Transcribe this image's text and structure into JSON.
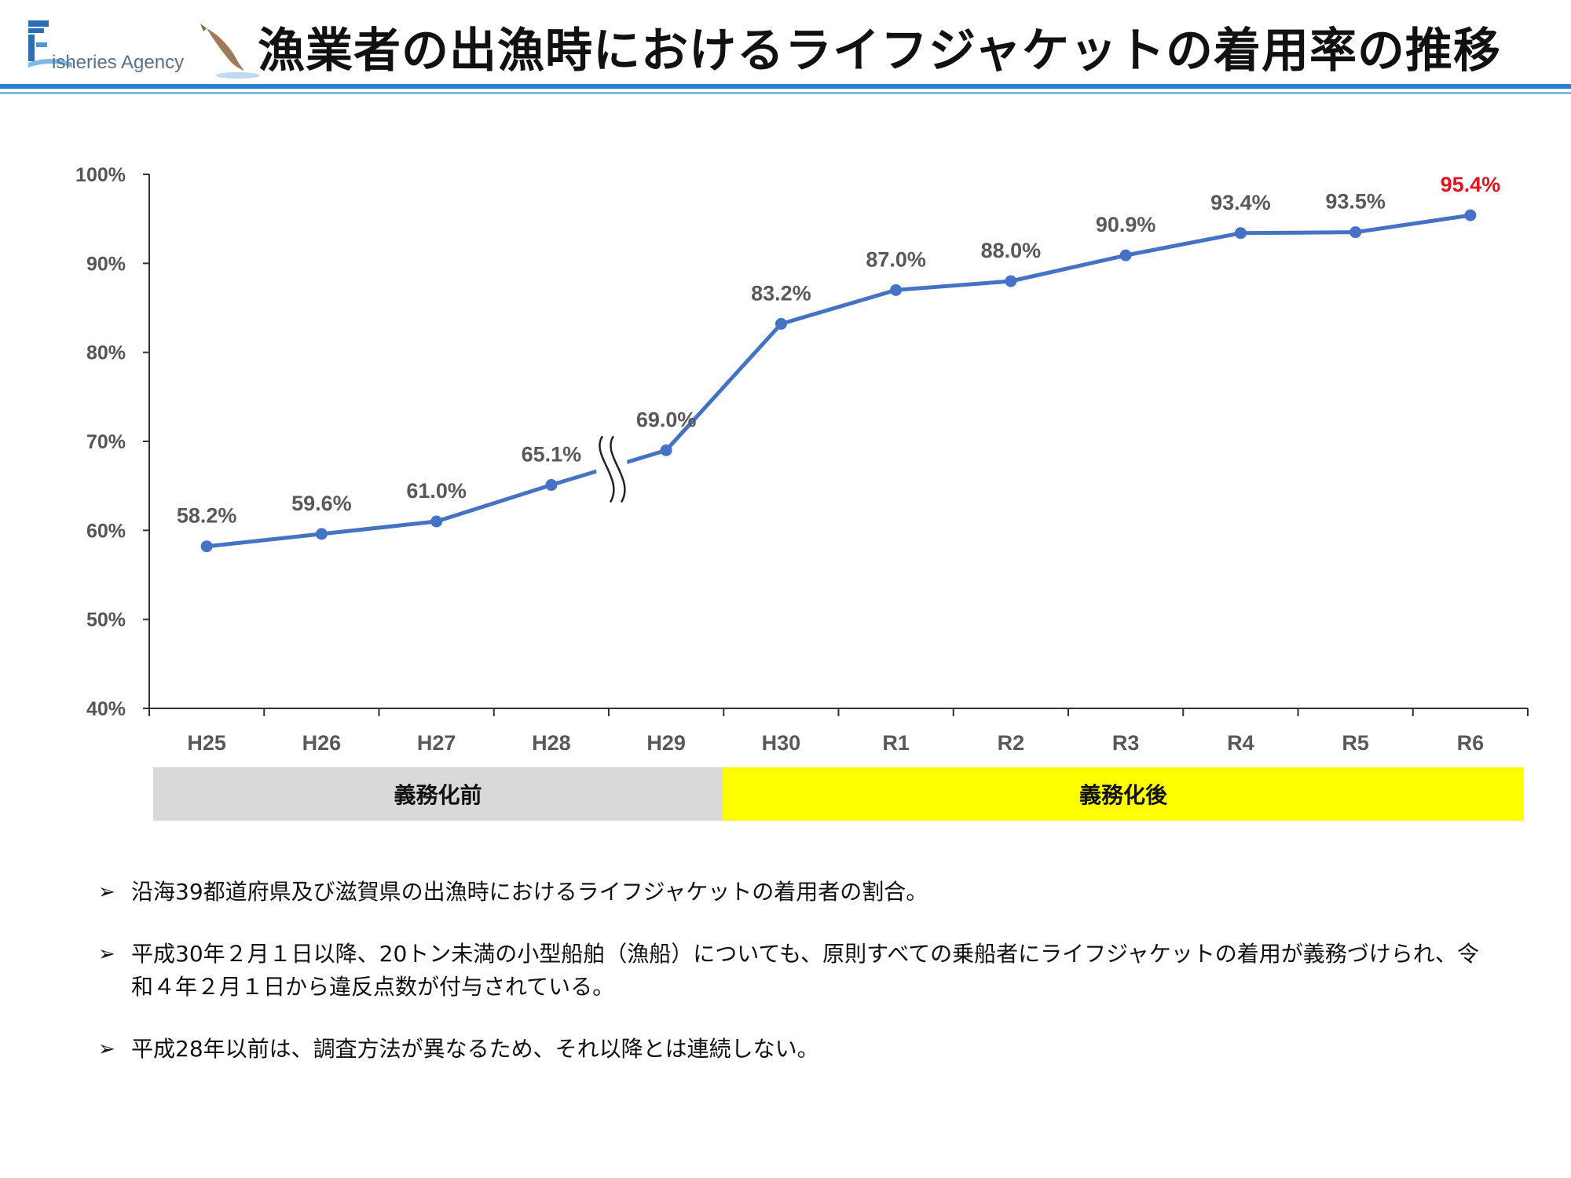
{
  "header": {
    "logo_text": "isheries Agency",
    "title": "漁業者の出漁時におけるライフジャケットの着用率の推移"
  },
  "chart_data": {
    "type": "line",
    "categories": [
      "H25",
      "H26",
      "H27",
      "H28",
      "H29",
      "H30",
      "R1",
      "R2",
      "R3",
      "R4",
      "R5",
      "R6"
    ],
    "values": [
      58.2,
      59.6,
      61.0,
      65.1,
      69.0,
      83.2,
      87.0,
      88.0,
      90.9,
      93.4,
      93.5,
      95.4
    ],
    "value_labels": [
      "58.2%",
      "59.6%",
      "61.0%",
      "65.1%",
      "69.0%",
      "83.2%",
      "87.0%",
      "88.0%",
      "90.9%",
      "93.4%",
      "93.5%",
      "95.4%"
    ],
    "highlight_index": 11,
    "highlight_color": "#e0141e",
    "line_color": "#4472c4",
    "ylim": [
      40,
      100
    ],
    "yticks": [
      "40%",
      "50%",
      "60%",
      "70%",
      "80%",
      "90%",
      "100%"
    ],
    "break_between": [
      "H28",
      "H29"
    ],
    "grid": false
  },
  "periods": {
    "before": "義務化前",
    "after": "義務化後",
    "before_color": "#d9d9d9",
    "after_color": "#ffff00"
  },
  "notes": [
    "沿海39都道府県及び滋賀県の出漁時におけるライフジャケットの着用者の割合。",
    "平成30年２月１日以降、20トン未満の小型船舶（漁船）についても、原則すべての乗船者にライフジャケットの着用が義務づけられ、令和４年２月１日から違反点数が付与されている。",
    "平成28年以前は、調査方法が異なるため、それ以降とは連続しない。"
  ],
  "icons": {
    "bullet": "arrowhead-bullet-icon"
  }
}
